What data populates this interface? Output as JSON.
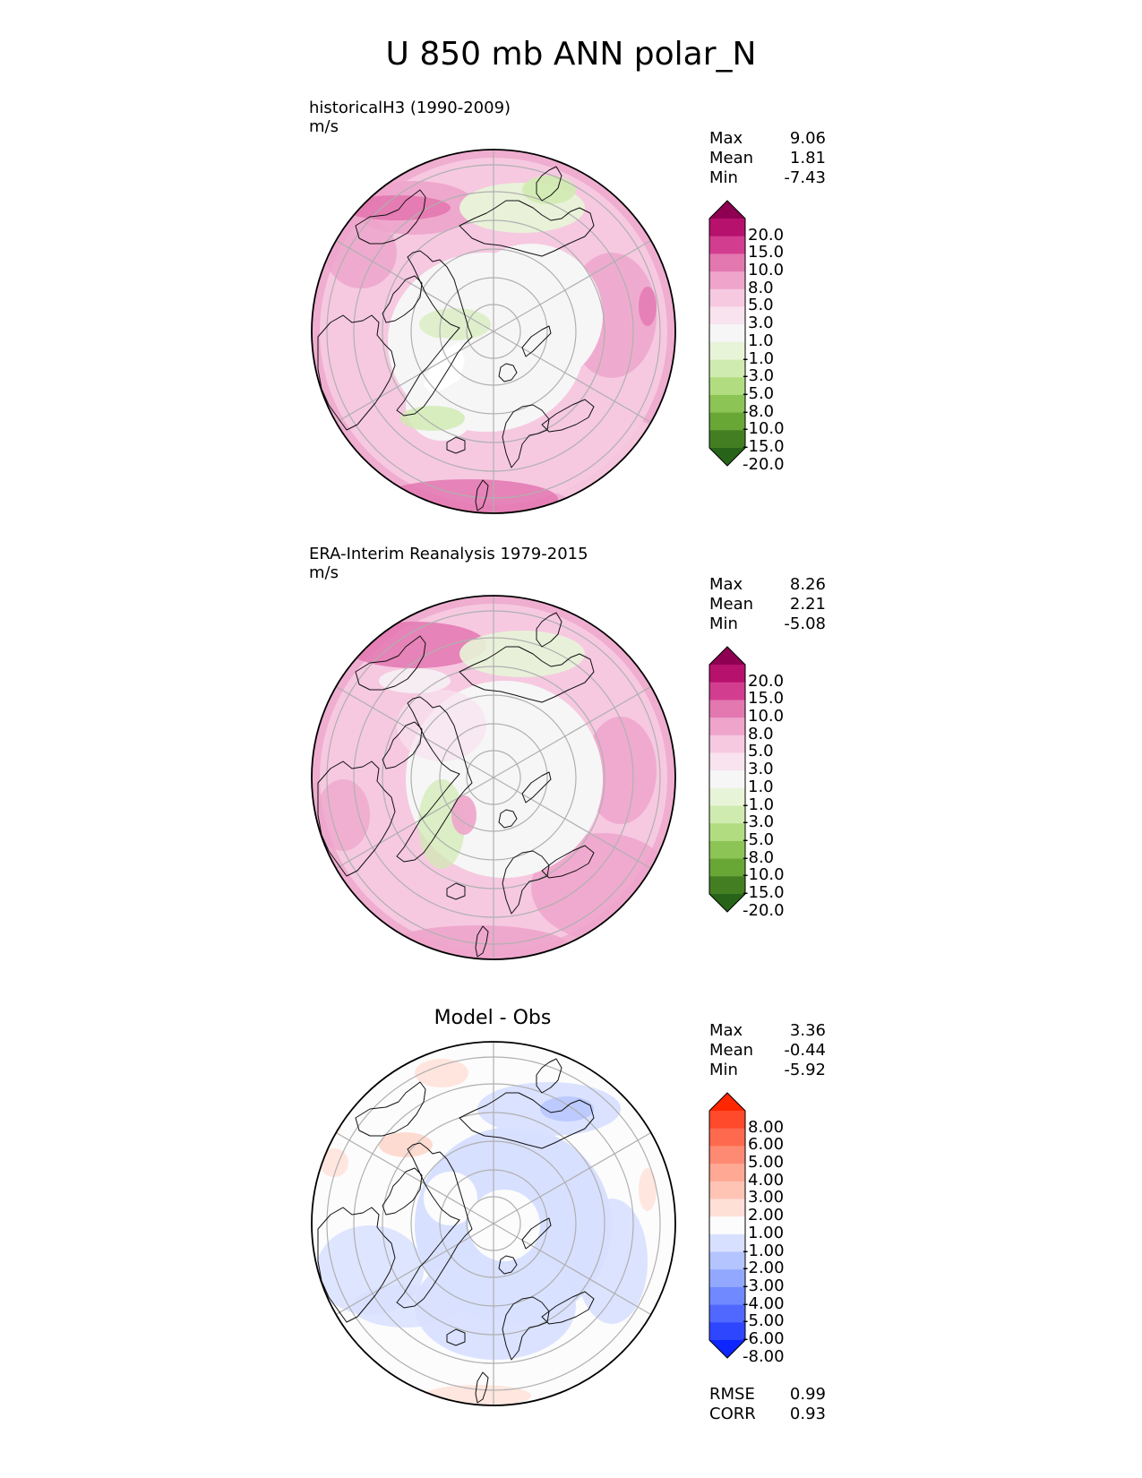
{
  "title": "U 850 mb ANN polar_N",
  "panels": [
    {
      "label": "historicalH3 (1990-2009)",
      "units": "m/s",
      "stats": [
        {
          "name": "Max",
          "value": "9.06"
        },
        {
          "name": "Mean",
          "value": "1.81"
        },
        {
          "name": "Min",
          "value": "-7.43"
        }
      ]
    },
    {
      "label": "ERA-Interim Reanalysis 1979-2015",
      "units": "m/s",
      "stats": [
        {
          "name": "Max",
          "value": "8.26"
        },
        {
          "name": "Mean",
          "value": "2.21"
        },
        {
          "name": "Min",
          "value": "-5.08"
        }
      ]
    },
    {
      "heading": "Model - Obs",
      "stats": [
        {
          "name": "Max",
          "value": "3.36"
        },
        {
          "name": "Mean",
          "value": "-0.44"
        },
        {
          "name": "Min",
          "value": "-5.92"
        }
      ],
      "metrics": [
        {
          "name": "RMSE",
          "value": "0.99"
        },
        {
          "name": "CORR",
          "value": "0.93"
        }
      ]
    }
  ],
  "colorbar_field": {
    "ticks": [
      "20.0",
      "15.0",
      "10.0",
      "8.0",
      "5.0",
      "3.0",
      "1.0",
      "-1.0",
      "-3.0",
      "-5.0",
      "-8.0",
      "-10.0",
      "-15.0",
      "-20.0"
    ],
    "colors": [
      "#8e0152",
      "#b7116e",
      "#d33d8f",
      "#e377b0",
      "#eea4cb",
      "#f6c9e1",
      "#f9e3ef",
      "#f6f6f6",
      "#e8f4d8",
      "#d0ebb0",
      "#b1dd80",
      "#8dc456",
      "#68a636",
      "#437f22",
      "#276419"
    ]
  },
  "colorbar_diff": {
    "ticks": [
      "8.00",
      "6.00",
      "5.00",
      "4.00",
      "3.00",
      "2.00",
      "1.00",
      "-1.00",
      "-2.00",
      "-3.00",
      "-4.00",
      "-5.00",
      "-6.00",
      "-8.00"
    ],
    "colors": [
      "#ff2600",
      "#ff4b2b",
      "#ff6a4f",
      "#ff8a73",
      "#ffa893",
      "#ffc4b4",
      "#ffe0d7",
      "#fcfcfc",
      "#d8e0ff",
      "#b4c4ff",
      "#92a8ff",
      "#7089ff",
      "#5068ff",
      "#2f46ff",
      "#0d26ff"
    ]
  }
}
